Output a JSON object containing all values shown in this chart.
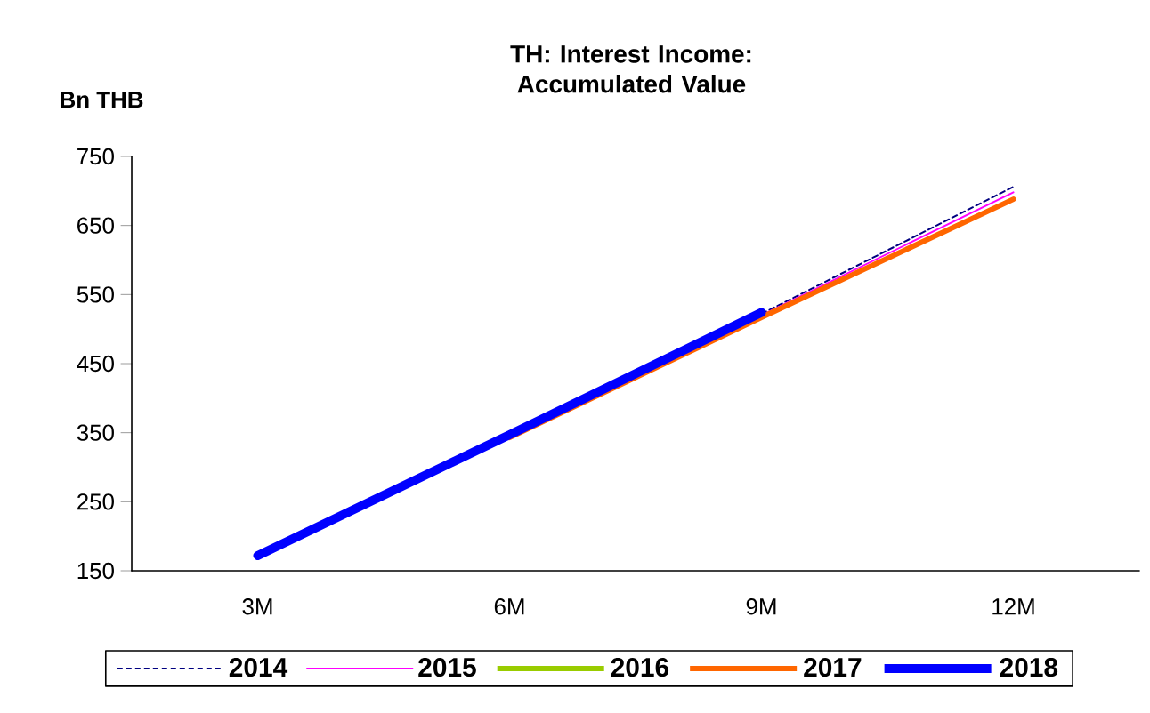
{
  "chart_data": {
    "type": "line",
    "title": "TH: Interest Income: Accumulated Value",
    "ylabel": "Bn THB",
    "categories": [
      "3M",
      "6M",
      "9M",
      "12M"
    ],
    "ylim": [
      150,
      750
    ],
    "yticks": [
      150,
      250,
      350,
      450,
      550,
      650,
      750
    ],
    "grid": false,
    "legend": "bottom",
    "marker": "none",
    "series": [
      {
        "name": "2014",
        "color": "#000080",
        "line_style": "dashed",
        "values": [
          null,
          null,
          522,
          706
        ]
      },
      {
        "name": "2015",
        "color": "#ff00ff",
        "line_style": "solid",
        "values": [
          null,
          null,
          520,
          698
        ]
      },
      {
        "name": "2016",
        "color": "#99cc00",
        "line_style": "solid",
        "values": [
          null,
          null,
          null,
          null
        ]
      },
      {
        "name": "2017",
        "color": "#ff6600",
        "line_style": "solid",
        "values": [
          null,
          343,
          517,
          688
        ]
      },
      {
        "name": "2018",
        "color": "#0000ff",
        "line_style": "solid",
        "values": [
          172,
          347,
          524,
          null
        ]
      }
    ]
  }
}
